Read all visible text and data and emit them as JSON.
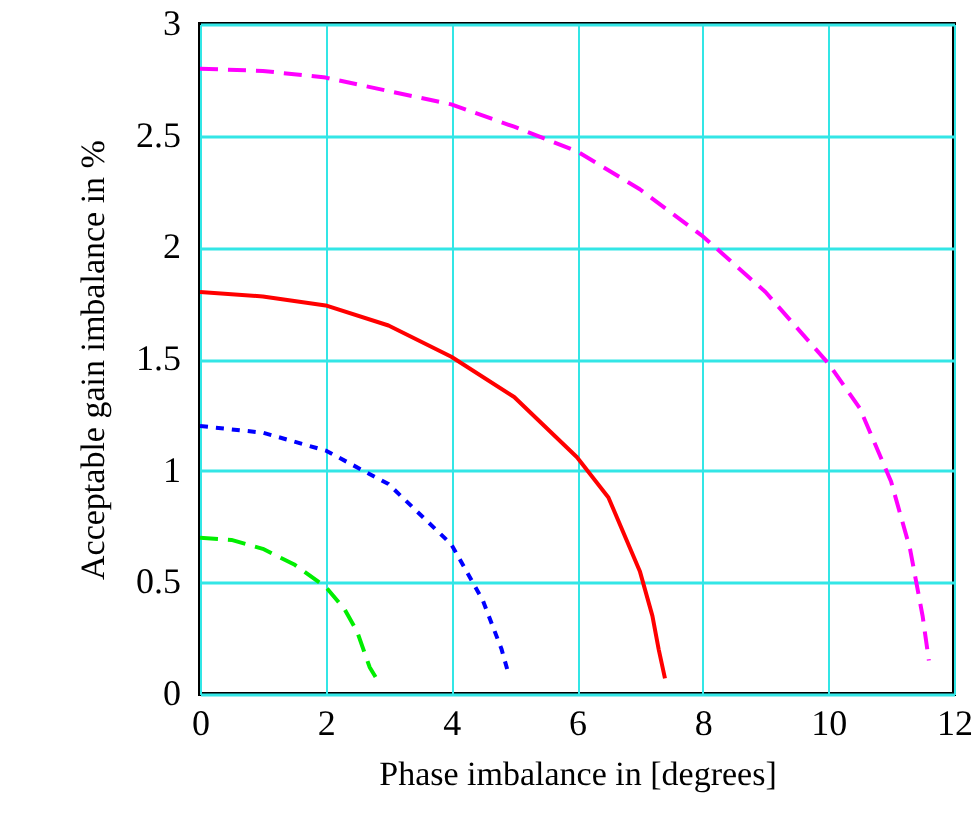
{
  "chart_data": {
    "type": "line",
    "xlabel": "Phase imbalance in [degrees]",
    "ylabel": "Acceptable gain imbalance in %",
    "xlim": [
      0,
      12
    ],
    "ylim": [
      0,
      3
    ],
    "xticks": [
      0,
      2,
      4,
      6,
      8,
      10,
      12
    ],
    "yticks": [
      0,
      0.5,
      1,
      1.5,
      2,
      2.5,
      3
    ],
    "grid": true,
    "marker": "none",
    "series": [
      {
        "color": "#ff00ff",
        "line_style": "dashed",
        "x": [
          0,
          1,
          2,
          3,
          4,
          5,
          6,
          7,
          8,
          9,
          10,
          10.5,
          11,
          11.3,
          11.5,
          11.6
        ],
        "values": [
          2.8,
          2.79,
          2.76,
          2.7,
          2.64,
          2.54,
          2.43,
          2.26,
          2.05,
          1.8,
          1.48,
          1.28,
          0.95,
          0.65,
          0.35,
          0.15
        ]
      },
      {
        "color": "#ff0000",
        "line_style": "solid",
        "x": [
          0,
          1,
          2,
          3,
          4,
          5,
          6,
          6.5,
          7,
          7.2,
          7.3,
          7.4
        ],
        "values": [
          1.8,
          1.78,
          1.74,
          1.65,
          1.51,
          1.33,
          1.06,
          0.88,
          0.55,
          0.35,
          0.2,
          0.07
        ]
      },
      {
        "color": "#0000ff",
        "line_style": "dotted",
        "x": [
          0,
          1,
          2,
          3,
          4,
          4.5,
          4.8,
          4.9
        ],
        "values": [
          1.2,
          1.17,
          1.09,
          0.94,
          0.67,
          0.42,
          0.2,
          0.1
        ]
      },
      {
        "color": "#00ee00",
        "line_style": "dashed",
        "x": [
          0,
          0.5,
          1,
          1.5,
          2,
          2.3,
          2.5,
          2.7,
          2.85
        ],
        "values": [
          0.7,
          0.69,
          0.65,
          0.58,
          0.48,
          0.38,
          0.28,
          0.12,
          0.05
        ]
      }
    ]
  }
}
